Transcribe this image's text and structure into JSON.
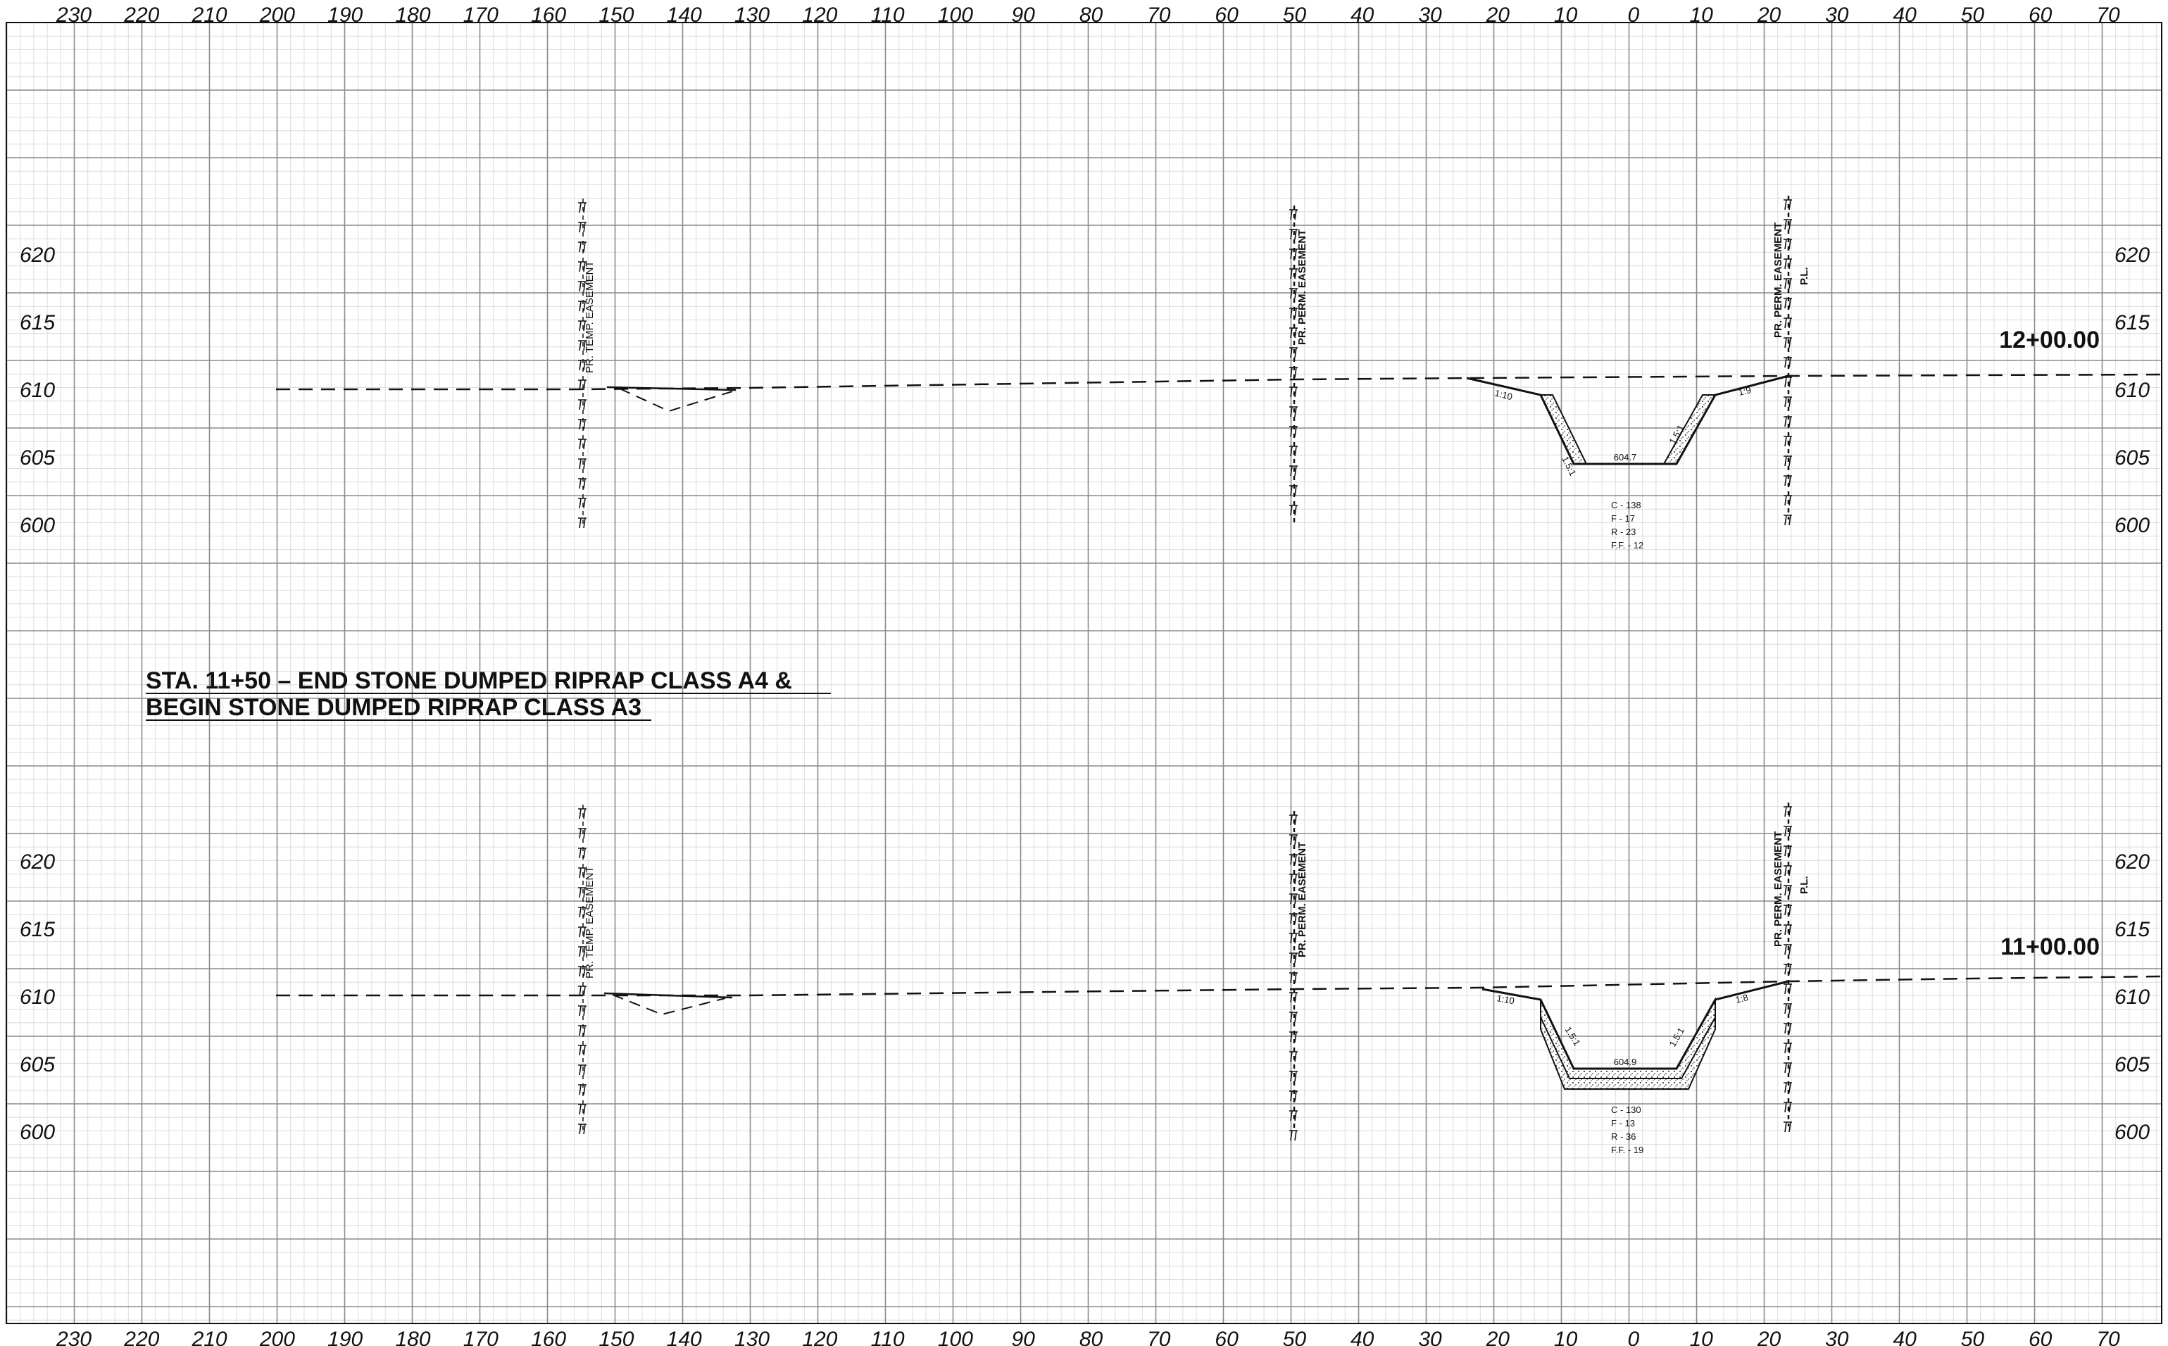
{
  "sheet": {
    "offset_scale": [
      "230",
      "220",
      "210",
      "200",
      "190",
      "180",
      "170",
      "160",
      "150",
      "140",
      "130",
      "120",
      "110",
      "100",
      "90",
      "80",
      "70",
      "60",
      "50",
      "40",
      "30",
      "20",
      "10",
      "0",
      "10",
      "20",
      "30",
      "40",
      "50",
      "60",
      "70"
    ],
    "title_line1": "STA. 11+50 – END  STONE  DUMPED  RIPRAP  CLASS  A4  &",
    "title_line2": "BEGIN  STONE  DUMPED  RIPRAP  CLASS  A3"
  },
  "sections": [
    {
      "station": "12+00.00",
      "elevations": [
        "620",
        "615",
        "610",
        "605",
        "600"
      ],
      "channel": {
        "invert_elev": "604.7",
        "left_slope": "1:10",
        "left_side_slope": "1.5:1",
        "right_side_slope": "1.5:1",
        "right_slope": "1:9"
      },
      "quantities": [
        "C - 138",
        "F - 17",
        "R - 23",
        "F.F. - 12"
      ],
      "annotations": {
        "temp_easement": "PR. TEMP. EASEMENT",
        "perm_easement_left": "PR. PERM. EASEMENT",
        "perm_easement_right": "PR. PERM. EASEMENT",
        "property_line": "P.L."
      }
    },
    {
      "station": "11+00.00",
      "elevations": [
        "620",
        "615",
        "610",
        "605",
        "600"
      ],
      "channel": {
        "invert_elev": "604.9",
        "left_slope": "1:10",
        "left_side_slope": "1.5:1",
        "right_side_slope": "1.5:1",
        "right_slope": "1:8"
      },
      "quantities": [
        "C - 130",
        "F - 13",
        "R - 36",
        "F.F. - 19"
      ],
      "annotations": {
        "temp_easement": "PR. TEMP. EASEMENT",
        "perm_easement_left": "PR. PERM. EASEMENT",
        "perm_easement_right": "PR. PERM. EASEMENT",
        "property_line": "P.L."
      }
    }
  ],
  "colors": {
    "ink": "#111111",
    "grid_major": "#8a8a8a",
    "grid_minor": "#dcdcdc"
  }
}
